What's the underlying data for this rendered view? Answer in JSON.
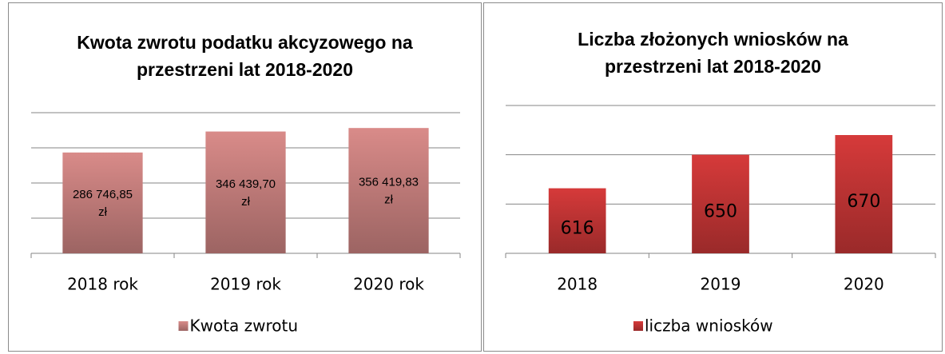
{
  "chart_data": [
    {
      "type": "bar",
      "title": "Kwota zwrotu podatku akcyzowego na przestrzeni lat 2018-2020",
      "categories": [
        "2018 rok",
        "2019 rok",
        "2020 rok"
      ],
      "series": [
        {
          "name": "Kwota zwrotu",
          "color": "#d98b89",
          "values": [
            286746.85,
            346439.7,
            356419.83
          ],
          "value_labels": [
            "286 746,85 zł",
            "346 439,70 zł",
            "356 419,83 zł"
          ]
        }
      ],
      "ylim": [
        0,
        400000
      ],
      "yticks": [
        0,
        100000,
        200000,
        300000,
        400000
      ],
      "grid": true,
      "legend": "bottom"
    },
    {
      "type": "bar",
      "title": "Liczba złożonych wniosków na przestrzeni lat 2018-2020",
      "categories": [
        "2018",
        "2019",
        "2020"
      ],
      "series": [
        {
          "name": "liczba wniosków",
          "color": "#d63a3a",
          "values": [
            616,
            650,
            670
          ]
        }
      ],
      "ylim": [
        550,
        700
      ],
      "yticks": [
        550,
        600,
        650,
        700
      ],
      "grid": true,
      "legend": "bottom"
    }
  ]
}
